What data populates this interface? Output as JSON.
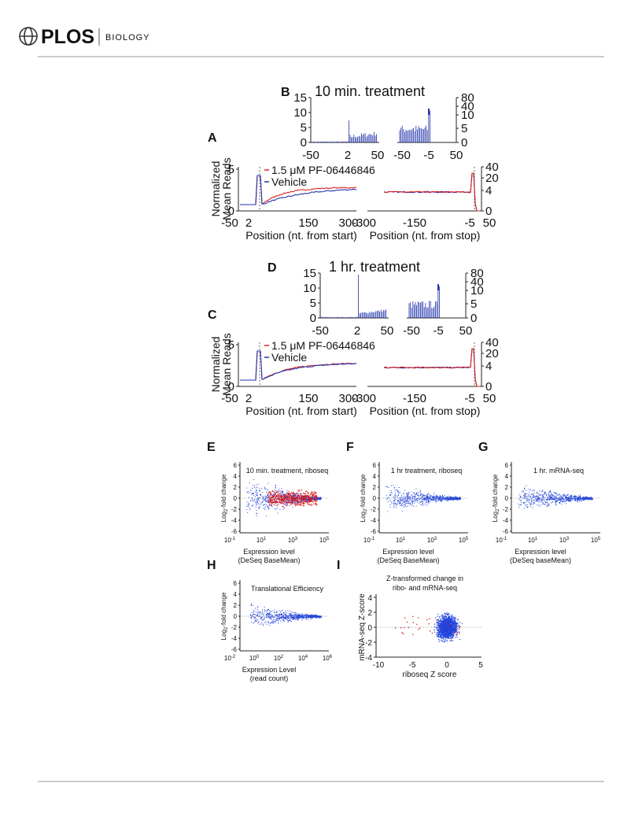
{
  "header": {
    "brand": "PLOS",
    "journal": "BIOLOGY"
  },
  "profiles": [
    {
      "letter_inset": "B",
      "letter_main": "A",
      "title": "10 min. treatment",
      "inset_start_yticks": [
        "15",
        "10",
        "5",
        "0"
      ],
      "inset_start_xticks": [
        "-50",
        "2",
        "50"
      ],
      "inset_stop_yticks": [
        "80",
        "40",
        "10",
        "5",
        "0"
      ],
      "inset_stop_xticks": [
        "-50",
        "-5",
        "50"
      ],
      "ylabel": [
        "Normalized",
        "Mean Reads"
      ],
      "legend": [
        "1.5 μM PF-06446846",
        "Vehicle"
      ],
      "start_yticks": [
        "5",
        "0"
      ],
      "stop_yticks": [
        "40",
        "20",
        "4",
        "0"
      ],
      "start_xticks": [
        "-50",
        "2",
        "150",
        "300"
      ],
      "stop_xticks": [
        "-300",
        "-150",
        "-5",
        "50"
      ],
      "start_xlabel": "Position (nt. from start)",
      "stop_xlabel": "Position (nt. from stop)"
    },
    {
      "letter_inset": "D",
      "letter_main": "C",
      "title": "1 hr. treatment",
      "inset_start_yticks": [
        "15",
        "10",
        "5",
        "0"
      ],
      "inset_start_xticks": [
        "-50",
        "2",
        "50"
      ],
      "inset_stop_yticks": [
        "80",
        "40",
        "10",
        "5",
        "0"
      ],
      "inset_stop_xticks": [
        "-50",
        "-5",
        "50"
      ],
      "ylabel": [
        "Normalized",
        "Mean Reads"
      ],
      "legend": [
        "1.5 μM PF-06446846",
        "Vehicle"
      ],
      "start_yticks": [
        "5",
        "0"
      ],
      "stop_yticks": [
        "40",
        "20",
        "4",
        "0"
      ],
      "start_xticks": [
        "-50",
        "2",
        "150",
        "300"
      ],
      "stop_xticks": [
        "-300",
        "-150",
        "-5",
        "50"
      ],
      "start_xlabel": "Position (nt. from start)",
      "stop_xlabel": "Position (nt. from stop)"
    }
  ],
  "ma_plots": [
    {
      "letter": "E",
      "title": "10 min. treatment, riboseq",
      "ylabel": [
        "Log",
        "2",
        "-fold change"
      ],
      "yticks": [
        "6",
        "4",
        "2",
        "0",
        "-2",
        "-4",
        "-6"
      ],
      "xticks": [
        [
          "10",
          "-1"
        ],
        [
          "10",
          "1"
        ],
        [
          "10",
          "3"
        ],
        [
          "10",
          "5"
        ]
      ],
      "xlabel": [
        "Expression level",
        "(DeSeq BaseMean)"
      ]
    },
    {
      "letter": "F",
      "title": "1 hr treatment, riboseq",
      "ylabel": [
        "Log",
        "2",
        "-fold change"
      ],
      "yticks": [
        "6",
        "4",
        "2",
        "0",
        "-2",
        "-4",
        "-6"
      ],
      "xticks": [
        [
          "10",
          "-1"
        ],
        [
          "10",
          "1"
        ],
        [
          "10",
          "3"
        ],
        [
          "10",
          "5"
        ]
      ],
      "xlabel": [
        "Expression level",
        "(DeSeq BaseMean)"
      ]
    },
    {
      "letter": "G",
      "title": "1 hr. mRNA-seq",
      "ylabel": [
        "Log",
        "2",
        "-fold change"
      ],
      "yticks": [
        "6",
        "4",
        "2",
        "0",
        "-2",
        "-4",
        "-6"
      ],
      "xticks": [
        [
          "10",
          "-1"
        ],
        [
          "10",
          "1"
        ],
        [
          "10",
          "3"
        ],
        [
          "10",
          "5"
        ]
      ],
      "xlabel": [
        "Expression level",
        "(DeSeq baseMean)"
      ]
    },
    {
      "letter": "H",
      "title": "Translational Efficiency",
      "ylabel": [
        "Log",
        "2",
        "-fold change"
      ],
      "yticks": [
        "6",
        "4",
        "2",
        "0",
        "-2",
        "-4",
        "-6"
      ],
      "xticks": [
        [
          "10",
          "-2"
        ],
        [
          "10",
          "0"
        ],
        [
          "10",
          "2"
        ],
        [
          "10",
          "4"
        ],
        [
          "10",
          "6"
        ]
      ],
      "xlabel": [
        "Expression Level",
        "(read count)"
      ]
    }
  ],
  "z_plot": {
    "letter": "I",
    "title": [
      "Z-transformed change in",
      "ribo- and mRNA-seq"
    ],
    "ylabel": "mRNA-seq Z-score",
    "yticks": [
      "4",
      "2",
      "0",
      "-2",
      "-4"
    ],
    "xticks": [
      "-10",
      "-5",
      "0",
      "5"
    ],
    "xlabel": "riboseq Z score"
  }
}
